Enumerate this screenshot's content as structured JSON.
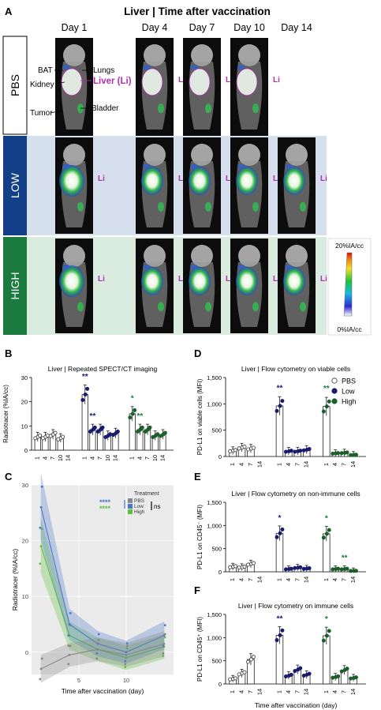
{
  "panelA": {
    "letter": "A",
    "title": "Liver | Time after vaccination",
    "days": [
      "Day 1",
      "Day 4",
      "Day 7",
      "Day 10",
      "Day 14"
    ],
    "rows": [
      {
        "label": "PBS",
        "color": "#ffffff",
        "text": "#000000",
        "bg": "#ffffff"
      },
      {
        "label": "LOW",
        "color": "#123f87",
        "text": "#ffffff",
        "bg": "#d6e0ec"
      },
      {
        "label": "HIGH",
        "color": "#1b7a3e",
        "text": "#ffffff",
        "bg": "#d9ecdf"
      }
    ],
    "organs": {
      "bat": "BAT",
      "lungs": "Lungs",
      "kidney": "Kidney",
      "liver": "Liver (Li)",
      "tumor": "Tumor",
      "bladder": "Bladder"
    },
    "li": "Li",
    "colorbar_top": "20%IA/cc",
    "colorbar_bottom": "0%IA/cc"
  },
  "panelB": {
    "letter": "B"
  },
  "panelC": {
    "letter": "C"
  },
  "panelD": {
    "letter": "D"
  },
  "panelE": {
    "letter": "E"
  },
  "panelF": {
    "letter": "F"
  },
  "chart_data": [
    {
      "id": "B",
      "type": "bar",
      "title": "Liver | Repeated SPECT/CT imaging",
      "ylabel": "Radiotracer (%IA/cc)",
      "ylim": [
        0,
        30
      ],
      "yticks": [
        "0",
        "10",
        "20",
        "30"
      ],
      "categories": [
        "1",
        "4",
        "7",
        "10",
        "14"
      ],
      "groups": [
        "PBS",
        "Low",
        "High"
      ],
      "values": [
        [
          5.5,
          5.5,
          6.5,
          5.0,
          null
        ],
        [
          23.0,
          8.5,
          8.5,
          6.0,
          7.0
        ],
        [
          15.0,
          8.5,
          8.5,
          6.0,
          6.5
        ]
      ],
      "annotations": [
        {
          "group": "Low",
          "cat": "1",
          "text": "**",
          "color": "#1a1a7a"
        },
        {
          "group": "Low",
          "cat": "4",
          "text": "**",
          "color": "#1a1a7a"
        },
        {
          "group": "High",
          "cat": "1",
          "text": "*",
          "color": "#1b7a3e"
        },
        {
          "group": "High",
          "cat": "4",
          "text": "**",
          "color": "#1b7a3e"
        }
      ]
    },
    {
      "id": "C",
      "type": "line",
      "ylabel": "Radiotracer (%IA/cc)",
      "xlabel": "Time after vaccination (day)",
      "xlim": [
        0,
        15
      ],
      "ylim": [
        -4,
        30
      ],
      "xticks": [
        "5",
        "10"
      ],
      "yticks": [
        "0",
        "10",
        "20",
        "30"
      ],
      "legend_title": "Treatment",
      "series": [
        {
          "name": "PBS",
          "color": "#888888",
          "x": [
            1,
            4,
            7,
            10,
            14
          ],
          "y": [
            -3.0,
            -0.5,
            0.5,
            -0.5,
            1.5
          ]
        },
        {
          "name": "Low",
          "color": "#4a78c8",
          "x": [
            1,
            4,
            7,
            10,
            14
          ],
          "y": [
            26.0,
            5.0,
            1.5,
            0.0,
            3.0
          ]
        },
        {
          "name": "High",
          "color": "#5cc23a",
          "x": [
            1,
            4,
            7,
            10,
            14
          ],
          "y": [
            19.0,
            3.0,
            0.5,
            -1.0,
            1.0
          ]
        }
      ],
      "stats": [
        {
          "text": "****",
          "color": "#4a78c8"
        },
        {
          "text": "****",
          "color": "#5cc23a"
        },
        {
          "text": "ns",
          "color": "#000000"
        }
      ]
    },
    {
      "id": "D",
      "type": "bar",
      "title": "Liver | Flow cytometry on viable cells",
      "ylabel": "PD-L1 on viable cells (MFI)",
      "ylim": [
        0,
        1500
      ],
      "yticks": [
        "0",
        "500",
        "1,000",
        "1,500"
      ],
      "categories": [
        "1",
        "4",
        "7",
        "14"
      ],
      "groups": [
        "PBS",
        "Low",
        "High"
      ],
      "values": [
        [
          110,
          170,
          150,
          null
        ],
        [
          960,
          100,
          100,
          130
        ],
        [
          950,
          60,
          70,
          30
        ]
      ],
      "legend": [
        "PBS",
        "Low",
        "High"
      ],
      "annotations": [
        {
          "group": "Low",
          "cat": "1",
          "text": "**",
          "color": "#1a1a7a"
        },
        {
          "group": "High",
          "cat": "1",
          "text": "**",
          "color": "#1b7a3e"
        }
      ]
    },
    {
      "id": "E",
      "type": "bar",
      "title": "Liver | Flow cytometry on non-immune cells",
      "ylabel": "PD-L1 on CD45⁻ (MFI)",
      "ylim": [
        0,
        1500
      ],
      "yticks": [
        "0",
        "500",
        "1,000",
        "1,500"
      ],
      "categories": [
        "1",
        "4",
        "7",
        "14"
      ],
      "groups": [
        "PBS",
        "Low",
        "High"
      ],
      "values": [
        [
          110,
          100,
          170,
          null
        ],
        [
          830,
          60,
          90,
          70
        ],
        [
          820,
          60,
          60,
          20
        ]
      ],
      "annotations": [
        {
          "group": "Low",
          "cat": "1",
          "text": "*",
          "color": "#1a1a7a"
        },
        {
          "group": "High",
          "cat": "1",
          "text": "*",
          "color": "#1b7a3e"
        },
        {
          "group": "High",
          "cat": "7",
          "text": "**",
          "color": "#1b7a3e"
        }
      ]
    },
    {
      "id": "F",
      "type": "bar",
      "title": "Liver | Flow cytometry on immune cells",
      "ylabel": "PD-L1 on CD45⁺ (MFI)",
      "xlabel": "Time after vaccination (day)",
      "ylim": [
        0,
        1500
      ],
      "yticks": [
        "0",
        "500",
        "1,000",
        "1,500"
      ],
      "categories": [
        "1",
        "4",
        "7",
        "14"
      ],
      "groups": [
        "PBS",
        "Low",
        "High"
      ],
      "values": [
        [
          110,
          230,
          530,
          null
        ],
        [
          1050,
          180,
          310,
          200
        ],
        [
          1040,
          150,
          300,
          130
        ]
      ],
      "annotations": [
        {
          "group": "Low",
          "cat": "1",
          "text": "**",
          "color": "#1a1a7a"
        },
        {
          "group": "High",
          "cat": "1",
          "text": "*",
          "color": "#1b7a3e"
        }
      ]
    }
  ]
}
